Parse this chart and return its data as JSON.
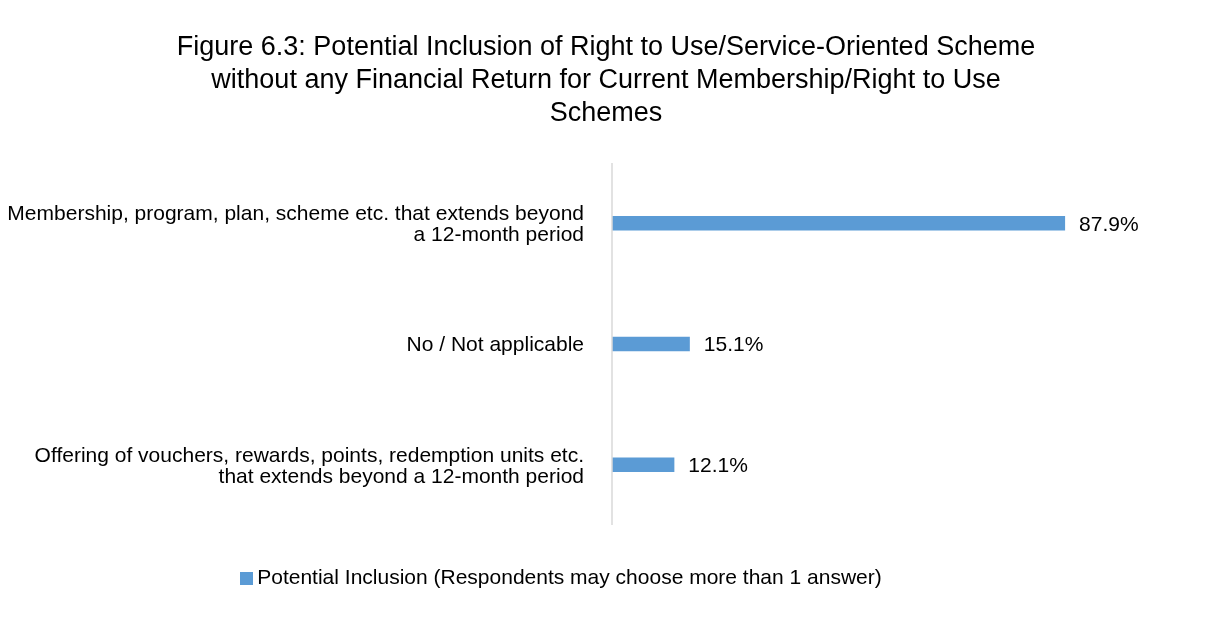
{
  "chart_data": {
    "type": "bar",
    "orientation": "horizontal",
    "title": "Figure 6.3: Potential Inclusion of Right to Use/Service-Oriented Scheme without any Financial Return for Current Membership/Right to Use Schemes",
    "categories": [
      "Membership, program, plan, scheme etc. that extends beyond a 12-month period",
      "No / Not applicable",
      "Offering of vouchers, rewards, points, redemption units etc. that extends beyond a 12-month period"
    ],
    "series": [
      {
        "name": "Potential Inclusion (Respondents may choose more than 1 answer)",
        "color": "#5b9bd5",
        "values": [
          87.9,
          15.1,
          12.1
        ],
        "value_labels": [
          "87.9%",
          "15.1%",
          "12.1%"
        ]
      }
    ],
    "legend": "bottom",
    "grid": false
  }
}
